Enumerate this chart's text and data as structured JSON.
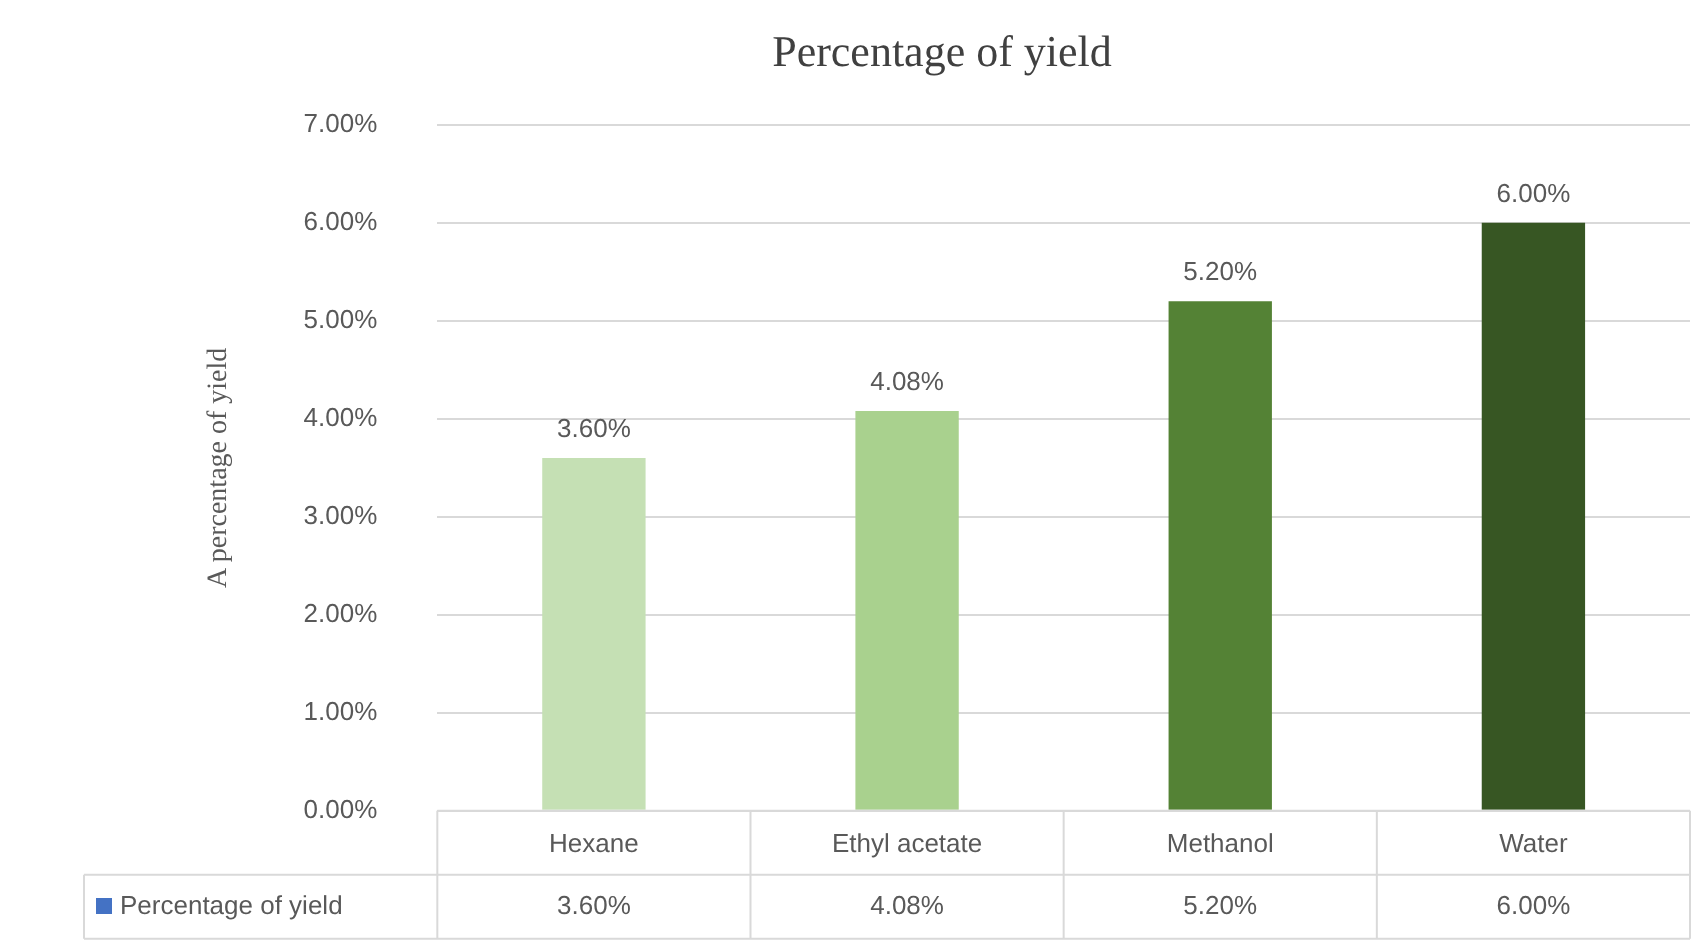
{
  "chart_data": {
    "type": "bar",
    "title": "Percentage of yield",
    "ylabel": "A percentage of yield",
    "categories": [
      "Hexane",
      "Ethyl acetate",
      "Methanol",
      "Water"
    ],
    "series": [
      {
        "name": "Percentage of yield",
        "color": "#4472c4",
        "colors": [
          "#c5e0b4",
          "#a9d18e",
          "#548235",
          "#375623"
        ],
        "values": [
          3.6,
          4.08,
          5.2,
          6.0
        ],
        "value_labels": [
          "3.60%",
          "4.08%",
          "5.20%",
          "6.00%"
        ]
      }
    ],
    "ylim": [
      0,
      7
    ],
    "yticks": [
      {
        "value": 0,
        "label": "0.00%"
      },
      {
        "value": 1,
        "label": "1.00%"
      },
      {
        "value": 2,
        "label": "2.00%"
      },
      {
        "value": 3,
        "label": "3.00%"
      },
      {
        "value": 4,
        "label": "4.00%"
      },
      {
        "value": 5,
        "label": "5.00%"
      },
      {
        "value": 6,
        "label": "6.00%"
      },
      {
        "value": 7,
        "label": "7.00%"
      }
    ],
    "grid": "y",
    "legend": "bottom"
  }
}
